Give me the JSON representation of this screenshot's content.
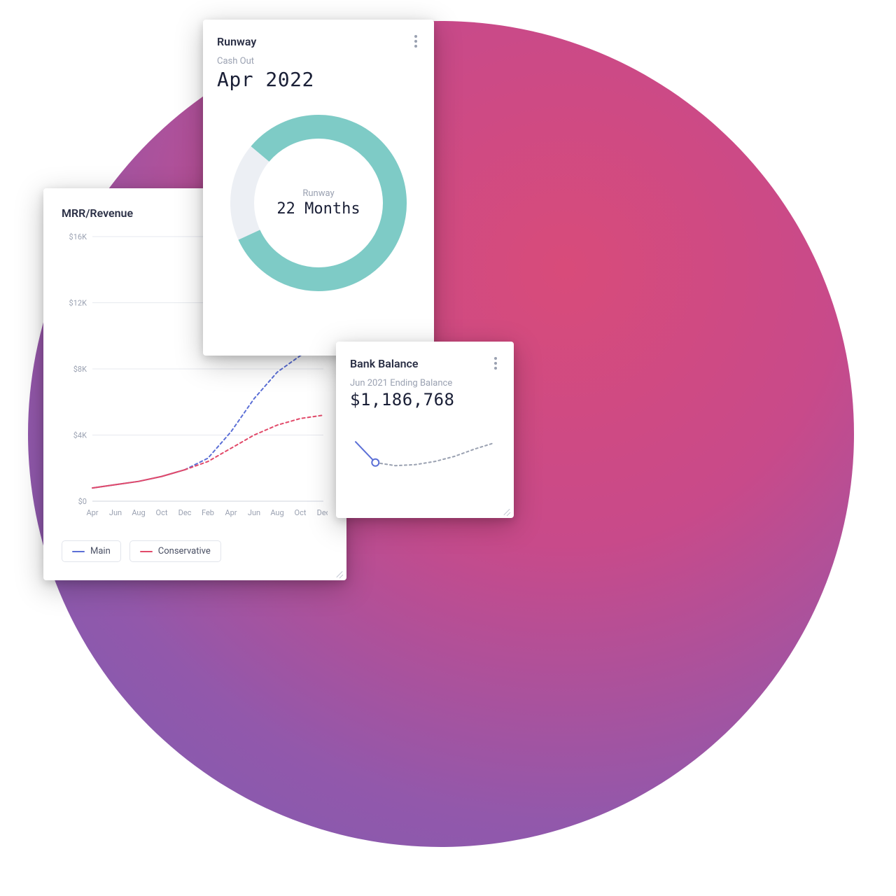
{
  "background": {
    "circle_gradient_stops": [
      "#d84b7a",
      "#c84a8a",
      "#9258ab",
      "#7a5db3"
    ],
    "page_bg": "#ffffff"
  },
  "mrr_card": {
    "title": "MRR/Revenue",
    "chart": {
      "type": "line",
      "y_ticks": [
        "$16K",
        "$12K",
        "$8K",
        "$4K",
        "$0"
      ],
      "y_tick_values": [
        16000,
        12000,
        8000,
        4000,
        0
      ],
      "ylim": [
        0,
        16000
      ],
      "x_labels": [
        "Apr",
        "Jun",
        "Aug",
        "Oct",
        "Dec",
        "Feb",
        "Apr",
        "Jun",
        "Aug",
        "Oct",
        "Dec"
      ],
      "grid_color": "#e7e9ef",
      "axis_text_color": "#9aa1b1",
      "axis_fontsize": 11,
      "series": [
        {
          "name": "Main",
          "color": "#5b6fd6",
          "solid_until_index": 4,
          "points_y": [
            800,
            1000,
            1200,
            1500,
            1900,
            2600,
            4200,
            6200,
            7800,
            8800,
            9400
          ]
        },
        {
          "name": "Conservative",
          "color": "#e24a6a",
          "solid_until_index": 4,
          "points_y": [
            800,
            1000,
            1200,
            1500,
            1900,
            2400,
            3200,
            4000,
            4600,
            5000,
            5200
          ]
        }
      ],
      "line_width": 2.0,
      "dash_pattern": "4 4"
    },
    "legend": [
      {
        "label": "Main",
        "color": "#5b6fd6"
      },
      {
        "label": "Conservative",
        "color": "#e24a6a"
      }
    ]
  },
  "runway_card": {
    "title": "Runway",
    "sub_label": "Cash Out",
    "value": "Apr 2022",
    "donut": {
      "type": "donut",
      "percent": 82,
      "start_angle_deg": -140,
      "ring_color": "#7ecbc6",
      "track_color": "#eceff4",
      "thickness": 34,
      "size": 260,
      "center_label": "Runway",
      "center_value": "22 Months",
      "center_label_color": "#9aa1b1",
      "center_value_color": "#1a1f36"
    }
  },
  "bank_card": {
    "title": "Bank Balance",
    "sub_label": "Jun 2021 Ending Balance",
    "value": "$1,186,768",
    "sparkline": {
      "type": "line",
      "solid_color": "#5b6fd6",
      "projection_color": "#9aa1b1",
      "line_width": 2.0,
      "dash_pattern": "3 4",
      "marker_index": 1,
      "marker_style": "hollow-circle",
      "marker_radius": 5,
      "points_y": [
        70,
        30,
        24,
        26,
        32,
        42,
        56,
        68
      ],
      "y_range": [
        0,
        100
      ]
    }
  },
  "ui_colors": {
    "card_bg": "#ffffff",
    "title_color": "#2a2f45",
    "muted_text": "#9aa1b1",
    "value_text": "#1a1f36",
    "border": "#e2e5ec",
    "more_icon": "#9aa1b1",
    "grip": "#c3c8d4"
  }
}
